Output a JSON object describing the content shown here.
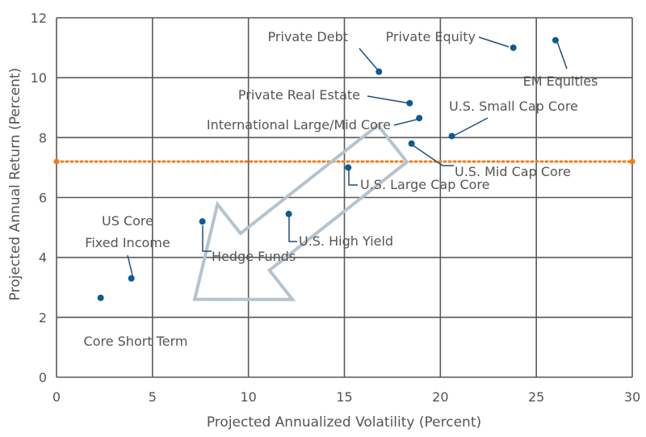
{
  "chart_data": {
    "type": "scatter",
    "xlabel": "Projected Annualized Volatility (Percent)",
    "ylabel": "Projected Annual Return (Percent)",
    "xlim": [
      0,
      30
    ],
    "ylim": [
      0,
      12
    ],
    "xticks": [
      0,
      5,
      10,
      15,
      20,
      25,
      30
    ],
    "yticks": [
      0,
      2,
      4,
      6,
      8,
      10,
      12
    ],
    "grid": true,
    "reference_line": {
      "y": 7.2,
      "style": "dotted",
      "color": "#F07D1A"
    },
    "annotation": {
      "kind": "arrow",
      "direction": "down-left",
      "from": [
        17.5,
        7.8
      ],
      "to": [
        7.2,
        2.6
      ]
    },
    "point_color": "#0E5A93",
    "points": [
      {
        "label": "Core Short Term",
        "x": 2.3,
        "y": 2.65
      },
      {
        "label": "US Core\nFixed Income",
        "x": 3.9,
        "y": 3.3
      },
      {
        "label": "Hedge Funds",
        "x": 7.6,
        "y": 5.2
      },
      {
        "label": "U.S. High Yield",
        "x": 12.1,
        "y": 5.45
      },
      {
        "label": "U.S. Large Cap Core",
        "x": 15.2,
        "y": 7.0
      },
      {
        "label": "U.S. Mid Cap Core",
        "x": 18.5,
        "y": 7.8
      },
      {
        "label": "U.S. Small Cap Core",
        "x": 20.6,
        "y": 8.05
      },
      {
        "label": "International Large/Mid Core",
        "x": 18.9,
        "y": 8.65
      },
      {
        "label": "Private Real Estate",
        "x": 18.4,
        "y": 9.15
      },
      {
        "label": "Private Debt",
        "x": 16.8,
        "y": 10.2
      },
      {
        "label": "Private Equity",
        "x": 23.8,
        "y": 11.0
      },
      {
        "label": "EM Equities",
        "x": 26.0,
        "y": 11.25
      }
    ]
  }
}
